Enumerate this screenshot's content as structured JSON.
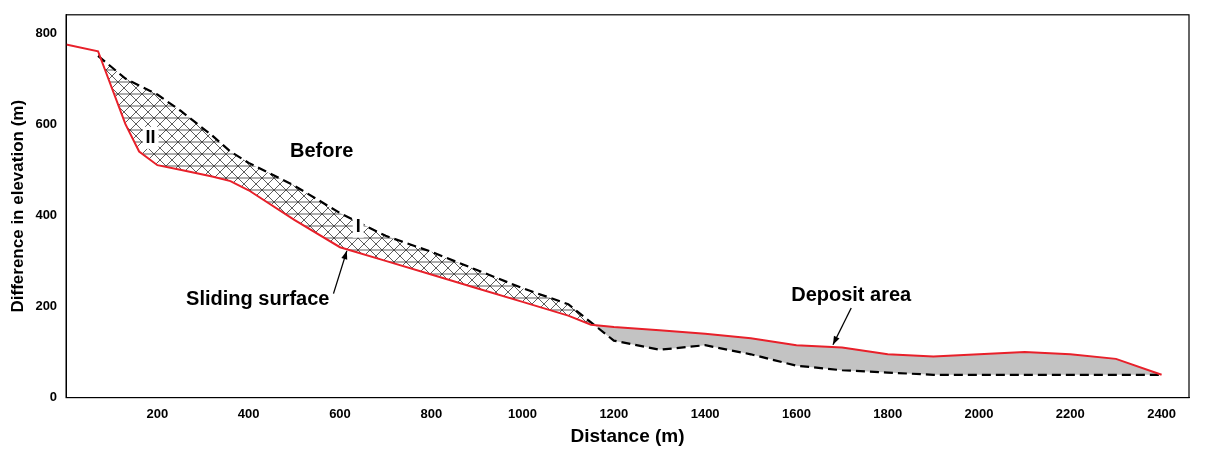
{
  "chart_data": {
    "type": "line",
    "x_label": "Distance (m)",
    "y_label": "Difference in elevation (m)",
    "x": [
      0,
      70,
      130,
      160,
      200,
      250,
      320,
      360,
      400,
      500,
      600,
      700,
      800,
      900,
      1000,
      1100,
      1150,
      1200,
      1300,
      1400,
      1500,
      1600,
      1700,
      1800,
      1900,
      2000,
      2100,
      2200,
      2300,
      2400
    ],
    "series": [
      {
        "name": "Before",
        "color": "#000000",
        "line_style": "dashed",
        "values": [
          null,
          750,
          700,
          685,
          665,
          630,
          575,
          540,
          515,
          465,
          405,
          355,
          320,
          280,
          240,
          205,
          165,
          125,
          105,
          115,
          95,
          70,
          60,
          55,
          50,
          50,
          50,
          50,
          50,
          50
        ]
      },
      {
        "name": "Sliding surface",
        "color": "#e8202a",
        "line_style": "solid",
        "values": [
          775,
          760,
          600,
          540,
          510,
          500,
          485,
          475,
          455,
          390,
          330,
          300,
          270,
          240,
          210,
          180,
          160,
          155,
          148,
          140,
          130,
          115,
          110,
          95,
          90,
          95,
          100,
          95,
          85,
          50
        ]
      }
    ],
    "xlim": [
      0,
      2460
    ],
    "xticks": [
      200,
      400,
      600,
      800,
      1000,
      1200,
      1400,
      1600,
      1800,
      2000,
      2200,
      2400
    ],
    "ylim": [
      0,
      840
    ],
    "yticks": [
      0,
      200,
      400,
      600,
      800
    ],
    "grid": false,
    "annotations": [
      {
        "text": "II",
        "x": 185,
        "y": 570
      },
      {
        "text": "I",
        "x": 640,
        "y": 375
      },
      {
        "text": "Before",
        "x": 560,
        "y": 540
      },
      {
        "text": "Sliding surface",
        "x": 420,
        "y": 215,
        "arrow_to": [
          615,
          322
        ]
      },
      {
        "text": "Deposit area",
        "x": 1720,
        "y": 225,
        "arrow_to": [
          1680,
          116
        ]
      }
    ]
  }
}
